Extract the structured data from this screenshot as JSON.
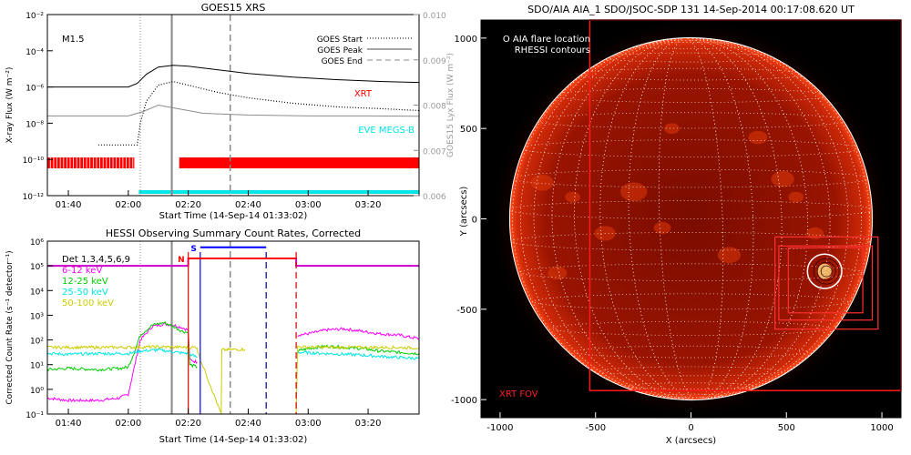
{
  "chart_data": [
    {
      "id": "goes",
      "type": "line",
      "title": "GOES15 XRS",
      "xlabel": "Start Time (14-Sep-14 01:33:02)",
      "ylabel": "X-ray Flux (W m⁻²)",
      "y2label": "GOES15 Lyx Flux (W m⁻²)",
      "x_ticks": [
        "01:40",
        "02:00",
        "02:20",
        "02:40",
        "03:00",
        "03:20"
      ],
      "x_tick_minutes": [
        100,
        120,
        140,
        160,
        180,
        200
      ],
      "xlim_minutes": [
        93,
        217
      ],
      "ylim_log": [
        -12,
        -2
      ],
      "y_ticks": [
        "10⁻¹²",
        "10⁻¹⁰",
        "10⁻⁸",
        "10⁻⁶",
        "10⁻⁴",
        "10⁻²"
      ],
      "y_tick_exps": [
        -12,
        -10,
        -8,
        -6,
        -4,
        -2
      ],
      "y2lim": [
        0.006,
        0.01
      ],
      "y2_ticks": [
        "0.006",
        "0.007",
        "0.008",
        "0.009",
        "0.010"
      ],
      "y2_tick_vals": [
        0.006,
        0.007,
        0.008,
        0.009,
        0.01
      ],
      "flare_class": "M1.5",
      "legend": [
        {
          "label": "GOES Start",
          "style": "dotted"
        },
        {
          "label": "GOES Peak",
          "style": "solid"
        },
        {
          "label": "GOES End",
          "style": "dashed"
        }
      ],
      "event_lines": {
        "start": 124,
        "peak": 134.5,
        "end": 154
      },
      "series_labels": {
        "xrt": "XRT",
        "eve": "EVE MEGS-B"
      },
      "series": [
        {
          "name": "GOES long (black)",
          "color": "#000000",
          "x": [
            93,
            120,
            123,
            126,
            130,
            135,
            140,
            150,
            160,
            175,
            190,
            205,
            217
          ],
          "log_flux": [
            -6.0,
            -6.0,
            -5.8,
            -5.3,
            -4.9,
            -4.8,
            -4.85,
            -5.05,
            -5.25,
            -5.45,
            -5.6,
            -5.7,
            -5.75
          ]
        },
        {
          "name": "GOES short (dotted)",
          "color": "#000000",
          "style": "dotted",
          "x": [
            110,
            123,
            124,
            126,
            130,
            135,
            140,
            150,
            160,
            175,
            190,
            205,
            217
          ],
          "log_flux": [
            -9.2,
            -9.2,
            -8.0,
            -6.8,
            -5.9,
            -5.7,
            -5.9,
            -6.3,
            -6.6,
            -6.9,
            -7.1,
            -7.2,
            -7.3
          ]
        },
        {
          "name": "GOES15 Lyx (grey)",
          "color": "#8c8c8c",
          "x": [
            93,
            120,
            125,
            130,
            135,
            145,
            160,
            180,
            200,
            217
          ],
          "log_flux": [
            -7.6,
            -7.6,
            -7.35,
            -7.0,
            -7.15,
            -7.45,
            -7.55,
            -7.6,
            -7.6,
            -7.62
          ]
        }
      ],
      "xrt_coverage_minutes": [
        [
          93,
          122
        ],
        [
          137,
          217
        ]
      ],
      "eve_coverage_minutes": [
        [
          123.5,
          217
        ]
      ]
    },
    {
      "id": "hessi",
      "type": "line",
      "title": "HESSI Observing Summary Count Rates, Corrected",
      "xlabel": "Start Time (14-Sep-14 01:33:02)",
      "ylabel": "Corrected Count Rate (s⁻¹ detector⁻¹)",
      "x_ticks": [
        "01:40",
        "02:00",
        "02:20",
        "02:40",
        "03:00",
        "03:20"
      ],
      "x_tick_minutes": [
        100,
        120,
        140,
        160,
        180,
        200
      ],
      "xlim_minutes": [
        93,
        217
      ],
      "ylim_log": [
        -1,
        6
      ],
      "y_ticks": [
        "10⁻¹",
        "10⁰",
        "10¹",
        "10²",
        "10³",
        "10⁴",
        "10⁵",
        "10⁶"
      ],
      "y_tick_exps": [
        -1,
        0,
        1,
        2,
        3,
        4,
        5,
        6
      ],
      "legend_title": "Det 1,3,4,5,6,9",
      "event_lines": {
        "start": 124,
        "peak": 134.5,
        "end": 154
      },
      "flags": [
        {
          "label": "N",
          "color": "#ff0000",
          "x_start": 140,
          "x_end": 176,
          "level": 5.3
        },
        {
          "label": "S",
          "color": "#0000ff",
          "x_start": 144,
          "x_end": 166,
          "level": 5.75
        }
      ],
      "gap_lines": [
        {
          "x": 140,
          "color": "#ff0000",
          "style": "solid"
        },
        {
          "x": 144,
          "color": "#0000ff",
          "style": "solid"
        },
        {
          "x": 166,
          "color": "#000099",
          "style": "dashed"
        },
        {
          "x": 176,
          "color": "#cc0000",
          "style": "dashed"
        }
      ],
      "series": [
        {
          "name": "6-12 keV",
          "color": "#ff00ff",
          "segments": [
            {
              "x": [
                93,
                100,
                110,
                117,
                120,
                122,
                124,
                128,
                132,
                135,
                138,
                140,
                140.5,
                143
              ],
              "log_rate": [
                -0.35,
                -0.45,
                -0.45,
                -0.35,
                -0.2,
                0.9,
                2.0,
                2.55,
                2.65,
                2.6,
                2.5,
                2.4,
                1.2,
                1.1
              ]
            },
            {
              "x": [
                176.5,
                180,
                186,
                192,
                198,
                204,
                210,
                217
              ],
              "log_rate": [
                2.2,
                2.25,
                2.4,
                2.45,
                2.35,
                2.25,
                2.2,
                2.05
              ]
            }
          ]
        },
        {
          "name": "12-25 keV",
          "color": "#00cc00",
          "segments": [
            {
              "x": [
                93,
                100,
                110,
                117,
                120,
                122,
                124,
                128,
                132,
                135,
                138,
                140,
                140.5,
                143
              ],
              "log_rate": [
                0.8,
                0.85,
                0.8,
                0.85,
                0.9,
                1.5,
                2.2,
                2.6,
                2.7,
                2.55,
                2.35,
                2.3,
                1.0,
                0.9
              ]
            },
            {
              "x": [
                176.5,
                180,
                186,
                192,
                198,
                204,
                210,
                217
              ],
              "log_rate": [
                1.55,
                1.65,
                1.75,
                1.7,
                1.65,
                1.55,
                1.5,
                1.45
              ]
            }
          ]
        },
        {
          "name": "25-50 keV",
          "color": "#00e5e5",
          "segments": [
            {
              "x": [
                93,
                100,
                110,
                120,
                124,
                130,
                136,
                140,
                143
              ],
              "log_rate": [
                1.45,
                1.42,
                1.45,
                1.45,
                1.55,
                1.6,
                1.5,
                1.45,
                1.3
              ]
            },
            {
              "x": [
                176.5,
                186,
                196,
                206,
                217
              ],
              "log_rate": [
                1.5,
                1.45,
                1.4,
                1.32,
                1.25
              ]
            }
          ]
        },
        {
          "name": "50-100 keV",
          "color": "#cccc00",
          "segments": [
            {
              "x": [
                93,
                110,
                120,
                130,
                140,
                143,
                143.2,
                151,
                151.2,
                159
              ],
              "log_rate": [
                1.7,
                1.7,
                1.7,
                1.72,
                1.7,
                1.7,
                1.5,
                -1.0,
                1.6,
                1.62
              ]
            },
            {
              "x": [
                159.2,
                176,
                176.5,
                190,
                205,
                217
              ],
              "log_rate": [
                -1.0,
                -1.0,
                1.72,
                1.7,
                1.7,
                1.68
              ]
            }
          ]
        },
        {
          "name": "attenuator",
          "color": "#cc00cc",
          "segments": [
            {
              "x": [
                93,
                140,
                140,
                176,
                176,
                217
              ],
              "log_rate": [
                5.0,
                5.0,
                5.3,
                5.3,
                5.0,
                5.0
              ]
            }
          ]
        }
      ]
    },
    {
      "id": "aia",
      "type": "scatter",
      "title": "SDO/AIA AIA_1 SDO/JSOC-SDP 131 14-Sep-2014 00:17:08.620 UT",
      "xlabel": "X (arcsecs)",
      "ylabel": "Y (arcsecs)",
      "xlim": [
        -1100,
        1100
      ],
      "ylim": [
        -1100,
        1100
      ],
      "x_ticks": [
        "-1000",
        "-500",
        "0",
        "500",
        "1000"
      ],
      "x_tick_vals": [
        -1000,
        -500,
        0,
        500,
        1000
      ],
      "y_ticks": [
        "-1000",
        "-500",
        "0",
        "500",
        "1000"
      ],
      "y_tick_vals": [
        -1000,
        -500,
        0,
        500,
        1000
      ],
      "legend": [
        "O AIA flare location",
        "RHESSI contours"
      ],
      "fov_label": "XRT FOV",
      "solar_radius_arcsec": 950,
      "xrt_fov_arcsec": {
        "x": [
          -530,
          1100
        ],
        "y": [
          -950,
          1100
        ]
      },
      "flare_location_arcsec": {
        "x": 700,
        "y": -290
      },
      "flare_circle_radius_arcsec": 90,
      "zoom_boxes_arcsec": [
        {
          "x": [
            440,
            980
          ],
          "y": [
            -610,
            -100
          ]
        },
        {
          "x": [
            460,
            950
          ],
          "y": [
            -560,
            -150
          ]
        },
        {
          "x": [
            510,
            900
          ],
          "y": [
            -520,
            -160
          ]
        }
      ]
    }
  ]
}
